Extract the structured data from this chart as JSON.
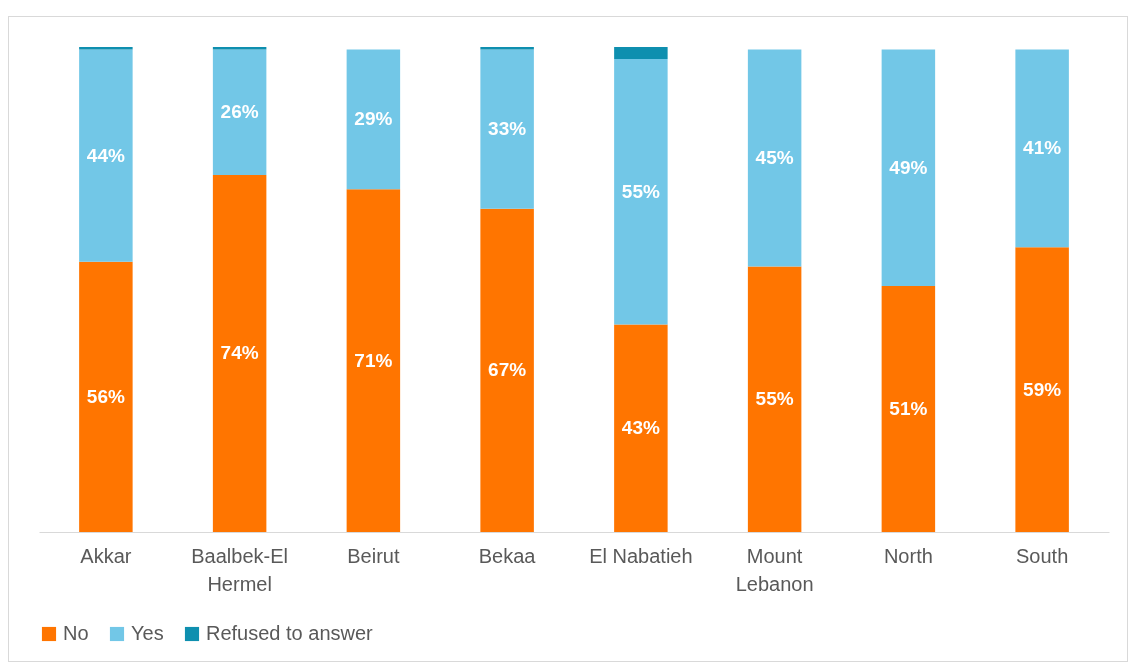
{
  "chart_data": {
    "type": "bar",
    "stacked": true,
    "categories": [
      "Akkar",
      "Baalbek-El Hermel",
      "Beirut",
      "Bekaa",
      "El Nabatieh",
      "Mount Lebanon",
      "North",
      "South"
    ],
    "ylim": [
      0,
      100.5
    ],
    "tick_labels": "x",
    "legend": "bottom",
    "series": [
      {
        "name": "No",
        "color": "#ff7500",
        "values": [
          56,
          74,
          71,
          67,
          43,
          55,
          51,
          59
        ],
        "value_labels": [
          "56%",
          "74%",
          "71%",
          "67%",
          "43%",
          "55%",
          "51%",
          "59%"
        ]
      },
      {
        "name": "Yes",
        "color": "#72c7e7",
        "values": [
          44,
          26,
          29,
          33,
          55,
          45,
          49,
          41
        ],
        "value_labels": [
          "44%",
          "26%",
          "29%",
          "33%",
          "55%",
          "45%",
          "49%",
          "41%"
        ]
      },
      {
        "name": "Refused to answer",
        "color": "#0e8faf",
        "values": [
          0.5,
          0.5,
          0,
          0.5,
          2.5,
          0,
          0,
          0
        ]
      }
    ]
  }
}
